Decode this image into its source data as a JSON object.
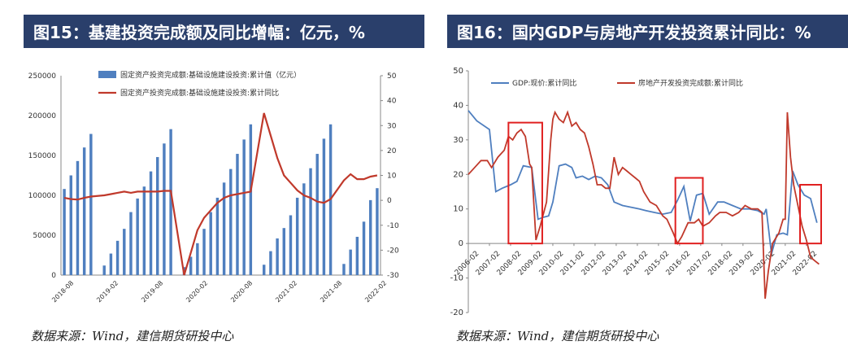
{
  "figures": [
    {
      "title": "图15：基建投资完成额及同比增幅：亿元，%",
      "source": "数据来源：Wind，建信期货研投中心"
    },
    {
      "title": "图16：国内GDP与房地产开发投资累计同比：%",
      "source": "数据来源：Wind，建信期货研投中心"
    }
  ],
  "chart_data": [
    {
      "type": "bar",
      "x_tick_labels": [
        "2018-08",
        "2019-02",
        "2019-08",
        "2020-02",
        "2020-08",
        "2021-02",
        "2021-08",
        "2022-02"
      ],
      "left_axis": {
        "ticks": [
          "0",
          "50000",
          "100000",
          "150000",
          "200000",
          "250000"
        ],
        "min": 0,
        "max": 250000
      },
      "right_axis": {
        "ticks": [
          "-30",
          "-20",
          "-10",
          "0",
          "10",
          "20",
          "30",
          "40",
          "50"
        ],
        "min": -30,
        "max": 50
      },
      "colors": {
        "bars": "#4f7fbf",
        "line": "#c0392b"
      },
      "legend_position": "top-center",
      "series": [
        {
          "name": "固定资产投资完成额:基础设施建设投资:累计值（亿元）",
          "kind": "bar",
          "axis": "left",
          "values": [
            108000,
            125000,
            143000,
            160000,
            177000,
            null,
            12000,
            27000,
            43000,
            58000,
            79000,
            96000,
            111000,
            130000,
            148000,
            165000,
            183000,
            null,
            10000,
            23000,
            40000,
            58000,
            79000,
            97000,
            116000,
            133000,
            152000,
            170000,
            189000,
            null,
            13000,
            30000,
            46000,
            59000,
            75000,
            97000,
            115000,
            134000,
            152000,
            171000,
            189000,
            null,
            14000,
            32000,
            48000,
            67000,
            94000,
            109000
          ]
        },
        {
          "name": "固定资产投资完成额:基础设施建设投资:累计同比",
          "kind": "line",
          "axis": "right",
          "values": [
            1,
            0.5,
            0.3,
            1,
            1.5,
            null,
            2,
            2.5,
            3,
            3.5,
            3,
            3.5,
            3.5,
            3.5,
            3.5,
            3.8,
            3.8,
            null,
            -30,
            -21,
            -12,
            -7,
            -4,
            -1,
            1,
            2,
            2.5,
            3,
            3.5,
            null,
            35,
            26,
            17,
            10,
            7,
            4,
            2,
            1,
            -0.5,
            -1,
            0.5,
            null,
            8,
            10.5,
            8.5,
            8.5,
            9.5,
            10
          ]
        }
      ]
    },
    {
      "type": "line",
      "x_tick_labels": [
        "2006-02",
        "2007-02",
        "2008-02",
        "2009-02",
        "2010-02",
        "2011-02",
        "2012-02",
        "2013-02",
        "2014-02",
        "2015-02",
        "2016-02",
        "2017-02",
        "2018-02",
        "2019-02",
        "2020-02",
        "2021-02",
        "2022-02"
      ],
      "y_axis": {
        "ticks": [
          "-20",
          "-10",
          "0",
          "10",
          "20",
          "30",
          "40",
          "50"
        ],
        "min": -20,
        "max": 50
      },
      "colors": {
        "gdp": "#4f7fbf",
        "realestate": "#c0392b",
        "highlight": "#e02020"
      },
      "legend_position": "top-left",
      "series": [
        {
          "name": "GDP:现价:累计同比",
          "x": [
            2006.1,
            2006.5,
            2007.1,
            2007.4,
            2007.7,
            2008.1,
            2008.4,
            2008.7,
            2009.1,
            2009.4,
            2009.6,
            2009.9,
            2010.1,
            2010.4,
            2010.7,
            2011.0,
            2011.2,
            2011.5,
            2011.8,
            2012.1,
            2012.4,
            2012.7,
            2013.0,
            2013.4,
            2013.8,
            2014.2,
            2014.5,
            2014.9,
            2015.3,
            2015.7,
            2016.0,
            2016.3,
            2016.6,
            2016.9,
            2017.2,
            2017.5,
            2017.9,
            2018.2,
            2018.6,
            2019.0,
            2019.4,
            2019.8,
            2020.1,
            2020.2,
            2020.45,
            2020.7,
            2021.0,
            2021.2,
            2021.45,
            2021.7,
            2022.0,
            2022.3,
            2022.6
          ],
          "y": [
            38.5,
            35.5,
            33,
            15,
            16,
            17,
            18,
            22.5,
            22,
            7,
            7.5,
            8,
            12,
            22.5,
            23,
            22,
            19,
            19.5,
            18.5,
            19.5,
            19,
            17,
            12,
            11,
            10.5,
            10,
            9.5,
            9,
            8.5,
            9,
            12.5,
            16.5,
            6.5,
            14,
            14.5,
            8.5,
            12,
            12,
            11,
            10,
            10,
            9.5,
            8.5,
            10,
            -3,
            2.5,
            3,
            2.5,
            21,
            17,
            14,
            13,
            6
          ]
        },
        {
          "name": "房地产开发投资完成额:累计同比",
          "x": [
            2006.1,
            2006.4,
            2006.7,
            2007.0,
            2007.2,
            2007.5,
            2007.8,
            2008.0,
            2008.2,
            2008.4,
            2008.6,
            2008.8,
            2009.0,
            2009.1,
            2009.3,
            2009.5,
            2009.8,
            2010.0,
            2010.1,
            2010.2,
            2010.4,
            2010.6,
            2010.8,
            2011.0,
            2011.2,
            2011.4,
            2011.6,
            2011.8,
            2012.0,
            2012.2,
            2012.4,
            2012.6,
            2012.8,
            2013.0,
            2013.2,
            2013.4,
            2013.6,
            2013.8,
            2014.0,
            2014.2,
            2014.4,
            2014.7,
            2015.0,
            2015.3,
            2015.5,
            2015.8,
            2016.0,
            2016.2,
            2016.5,
            2016.8,
            2017.0,
            2017.2,
            2017.5,
            2017.8,
            2018.0,
            2018.3,
            2018.6,
            2018.9,
            2019.2,
            2019.5,
            2019.8,
            2020.0,
            2020.15,
            2020.3,
            2020.5,
            2020.8,
            2021.0,
            2021.1,
            2021.2,
            2021.35,
            2021.5,
            2021.7,
            2021.9,
            2022.1,
            2022.3,
            2022.5,
            2022.7
          ],
          "y": [
            20,
            22,
            24,
            24,
            22,
            25,
            27,
            31,
            30,
            32,
            33,
            31,
            23,
            22,
            1,
            5,
            12,
            30,
            36,
            38,
            36,
            35,
            38,
            34,
            35,
            33,
            32,
            28,
            23,
            17,
            17,
            16,
            16,
            25,
            20,
            22,
            21,
            20,
            19,
            18,
            15,
            12,
            11,
            8,
            7,
            3,
            0,
            2,
            6,
            6,
            7,
            5,
            6,
            8,
            9,
            9,
            8,
            9,
            11,
            10,
            10,
            9,
            -16,
            -8,
            0,
            3,
            7,
            7,
            38,
            25,
            17,
            11,
            5,
            1,
            -4,
            -5,
            -6
          ]
        }
      ],
      "highlight_boxes": [
        {
          "x0": 2008.0,
          "x1": 2009.6,
          "y0": 0,
          "y1": 35
        },
        {
          "x0": 2015.9,
          "x1": 2017.2,
          "y0": 0,
          "y1": 19
        },
        {
          "x0": 2021.8,
          "x1": 2022.8,
          "y0": 0,
          "y1": 17
        }
      ]
    }
  ]
}
